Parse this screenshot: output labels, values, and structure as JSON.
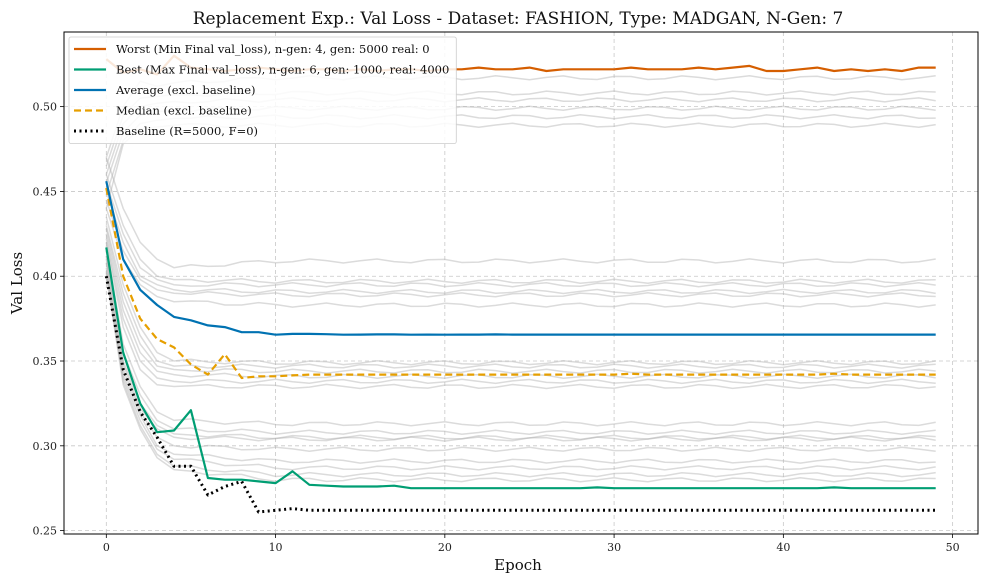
{
  "chart_data": {
    "type": "line",
    "title": "Replacement Exp.: Val Loss - Dataset: FASHION, Type: MADGAN, N-Gen: 7",
    "xlabel": "Epoch",
    "ylabel": "Val Loss",
    "xlim": [
      -2.5,
      51.5
    ],
    "ylim": [
      0.248,
      0.544
    ],
    "xticks": [
      0,
      10,
      20,
      30,
      40,
      50
    ],
    "yticks": [
      0.25,
      0.3,
      0.35,
      0.4,
      0.45,
      0.5
    ],
    "grid": true,
    "legend_position": "top-left",
    "series": [
      {
        "name": "Worst (Min Final val_loss), n-gen: 4, gen: 5000 real: 0",
        "color": "#d55e00",
        "style": "solid",
        "width": 2.2,
        "values": [
          0.528,
          0.52,
          0.522,
          0.519,
          0.53,
          0.523,
          0.522,
          0.521,
          0.522,
          0.523,
          0.522,
          0.521,
          0.522,
          0.522,
          0.521,
          0.522,
          0.521,
          0.522,
          0.522,
          0.521,
          0.522,
          0.522,
          0.523,
          0.522,
          0.522,
          0.523,
          0.521,
          0.522,
          0.522,
          0.522,
          0.522,
          0.523,
          0.522,
          0.522,
          0.522,
          0.523,
          0.522,
          0.523,
          0.524,
          0.521,
          0.521,
          0.522,
          0.523,
          0.521,
          0.522,
          0.521,
          0.522,
          0.521,
          0.523,
          0.523
        ]
      },
      {
        "name": "Best (Max Final val_loss), n-gen: 6, gen: 1000, real: 4000",
        "color": "#009e73",
        "style": "solid",
        "width": 2.2,
        "values": [
          0.417,
          0.355,
          0.325,
          0.308,
          0.309,
          0.321,
          0.281,
          0.28,
          0.28,
          0.279,
          0.278,
          0.285,
          0.277,
          0.2765,
          0.276,
          0.276,
          0.276,
          0.2765,
          0.275,
          0.275,
          0.275,
          0.275,
          0.275,
          0.275,
          0.275,
          0.275,
          0.275,
          0.275,
          0.275,
          0.2755,
          0.275,
          0.275,
          0.275,
          0.275,
          0.275,
          0.275,
          0.275,
          0.275,
          0.275,
          0.275,
          0.275,
          0.275,
          0.275,
          0.2755,
          0.275,
          0.275,
          0.275,
          0.275,
          0.275,
          0.275
        ]
      },
      {
        "name": "Average (excl. baseline)",
        "color": "#0072b2",
        "style": "solid",
        "width": 2.2,
        "values": [
          0.456,
          0.41,
          0.392,
          0.383,
          0.376,
          0.374,
          0.371,
          0.37,
          0.367,
          0.367,
          0.3655,
          0.366,
          0.366,
          0.3658,
          0.3655,
          0.3656,
          0.3657,
          0.3657,
          0.3655,
          0.3656,
          0.3655,
          0.3656,
          0.3656,
          0.3657,
          0.3656,
          0.3656,
          0.3656,
          0.3656,
          0.3656,
          0.3656,
          0.3656,
          0.3656,
          0.3656,
          0.3656,
          0.3656,
          0.3656,
          0.3656,
          0.3656,
          0.3656,
          0.3656,
          0.3656,
          0.3656,
          0.3656,
          0.3656,
          0.3656,
          0.3656,
          0.3656,
          0.3656,
          0.3656,
          0.3656
        ]
      },
      {
        "name": "Median (excl. baseline)",
        "color": "#e69f00",
        "style": "dashed",
        "width": 2.2,
        "values": [
          0.452,
          0.4,
          0.375,
          0.363,
          0.358,
          0.348,
          0.342,
          0.354,
          0.34,
          0.341,
          0.341,
          0.3415,
          0.342,
          0.342,
          0.342,
          0.342,
          0.342,
          0.342,
          0.342,
          0.342,
          0.342,
          0.342,
          0.342,
          0.342,
          0.342,
          0.342,
          0.342,
          0.342,
          0.342,
          0.342,
          0.342,
          0.3425,
          0.342,
          0.342,
          0.342,
          0.342,
          0.342,
          0.342,
          0.342,
          0.342,
          0.342,
          0.342,
          0.342,
          0.3425,
          0.342,
          0.342,
          0.342,
          0.342,
          0.342,
          0.342
        ]
      },
      {
        "name": "Baseline (R=5000, F=0)",
        "color": "#000000",
        "style": "dotted",
        "width": 3,
        "values": [
          0.4,
          0.345,
          0.32,
          0.305,
          0.288,
          0.288,
          0.271,
          0.276,
          0.279,
          0.261,
          0.262,
          0.263,
          0.262,
          0.262,
          0.262,
          0.262,
          0.262,
          0.262,
          0.262,
          0.262,
          0.262,
          0.262,
          0.262,
          0.262,
          0.262,
          0.262,
          0.262,
          0.262,
          0.262,
          0.262,
          0.262,
          0.262,
          0.262,
          0.262,
          0.262,
          0.262,
          0.262,
          0.262,
          0.262,
          0.262,
          0.262,
          0.262,
          0.262,
          0.262,
          0.262,
          0.262,
          0.262,
          0.262,
          0.262,
          0.262
        ]
      }
    ],
    "background_runs": {
      "color": "#b0b0b0",
      "runs": [
        {
          "start": [
            0.47,
            0.5,
            0.515,
            0.512,
            0.514
          ],
          "final": 0.517
        },
        {
          "start": [
            0.465,
            0.495,
            0.505,
            0.506,
            0.507
          ],
          "final": 0.508
        },
        {
          "start": [
            0.46,
            0.49,
            0.5,
            0.502,
            0.503
          ],
          "final": 0.504
        },
        {
          "start": [
            0.455,
            0.485,
            0.495,
            0.497,
            0.498
          ],
          "final": 0.499
        },
        {
          "start": [
            0.448,
            0.48,
            0.49,
            0.492,
            0.493
          ],
          "final": 0.494
        },
        {
          "start": [
            0.44,
            0.478,
            0.487,
            0.488,
            0.489
          ],
          "final": 0.489
        },
        {
          "start": [
            0.47,
            0.44,
            0.42,
            0.41,
            0.405
          ],
          "final": 0.409
        },
        {
          "start": [
            0.46,
            0.43,
            0.41,
            0.4,
            0.398
          ],
          "final": 0.397
        },
        {
          "start": [
            0.455,
            0.425,
            0.405,
            0.398,
            0.395
          ],
          "final": 0.395
        },
        {
          "start": [
            0.45,
            0.42,
            0.4,
            0.395,
            0.392
          ],
          "final": 0.391
        },
        {
          "start": [
            0.445,
            0.415,
            0.398,
            0.392,
            0.39
          ],
          "final": 0.389
        },
        {
          "start": [
            0.44,
            0.41,
            0.395,
            0.388,
            0.385
          ],
          "final": 0.383
        },
        {
          "start": [
            0.435,
            0.395,
            0.37,
            0.355,
            0.35
          ],
          "final": 0.349
        },
        {
          "start": [
            0.43,
            0.39,
            0.365,
            0.35,
            0.347
          ],
          "final": 0.347
        },
        {
          "start": [
            0.428,
            0.385,
            0.36,
            0.347,
            0.345
          ],
          "final": 0.344
        },
        {
          "start": [
            0.425,
            0.38,
            0.355,
            0.344,
            0.342
          ],
          "final": 0.341
        },
        {
          "start": [
            0.422,
            0.375,
            0.35,
            0.34,
            0.338
          ],
          "final": 0.338
        },
        {
          "start": [
            0.42,
            0.37,
            0.345,
            0.336,
            0.335
          ],
          "final": 0.335
        },
        {
          "start": [
            0.418,
            0.36,
            0.335,
            0.32,
            0.315
          ],
          "final": 0.313
        },
        {
          "start": [
            0.415,
            0.355,
            0.33,
            0.315,
            0.31
          ],
          "final": 0.308
        },
        {
          "start": [
            0.412,
            0.35,
            0.325,
            0.312,
            0.307
          ],
          "final": 0.305
        },
        {
          "start": [
            0.41,
            0.348,
            0.322,
            0.31,
            0.305
          ],
          "final": 0.304
        },
        {
          "start": [
            0.408,
            0.345,
            0.32,
            0.305,
            0.3
          ],
          "final": 0.298
        },
        {
          "start": [
            0.405,
            0.342,
            0.318,
            0.3,
            0.295
          ],
          "final": 0.291
        },
        {
          "start": [
            0.403,
            0.34,
            0.315,
            0.298,
            0.292
          ],
          "final": 0.287
        },
        {
          "start": [
            0.402,
            0.338,
            0.312,
            0.295,
            0.288
          ],
          "final": 0.283
        },
        {
          "start": [
            0.401,
            0.336,
            0.31,
            0.293,
            0.286
          ],
          "final": 0.28
        }
      ]
    }
  }
}
